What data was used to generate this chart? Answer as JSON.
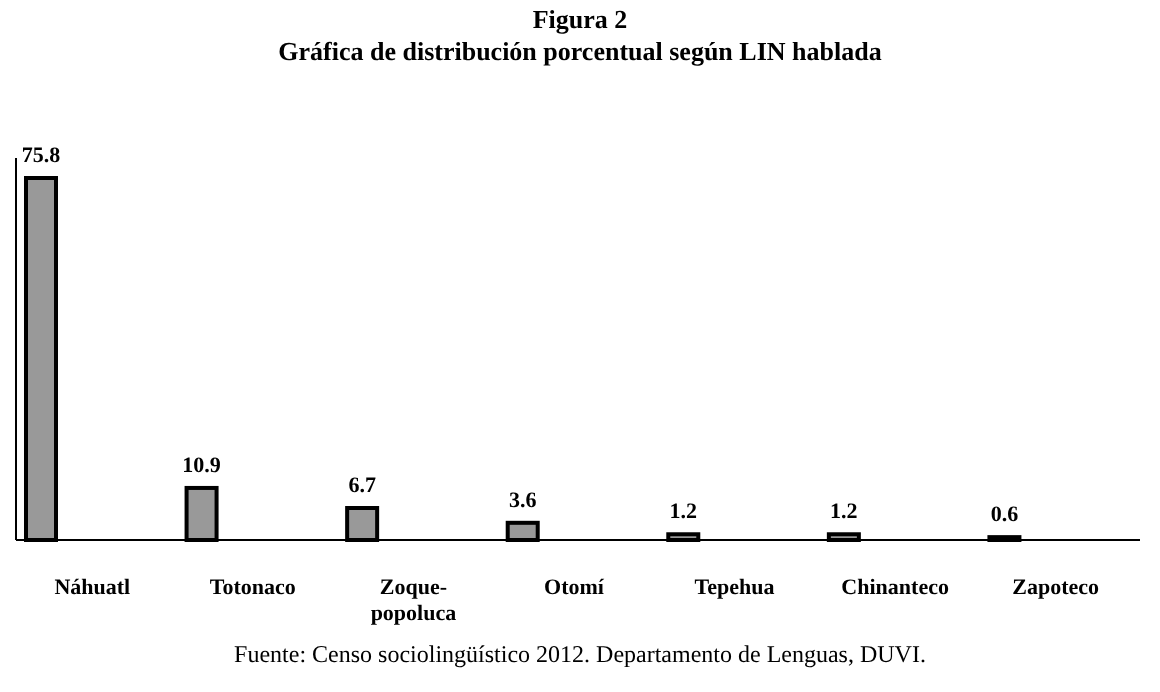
{
  "chart_data": {
    "type": "bar",
    "title": "Figura 2",
    "subtitle": "Gráfica de distribución porcentual según LIN hablada",
    "categories": [
      "Náhuatl",
      "Totonaco",
      "Zoque-popoluca",
      "Otomí",
      "Tepehua",
      "Chinanteco",
      "Zapoteco"
    ],
    "values": [
      75.8,
      10.9,
      6.7,
      3.6,
      1.2,
      1.2,
      0.6
    ],
    "color": "#999999",
    "data_labels": true,
    "annotations": [
      "Fuente: Censo sociolingüístico 2012. Departamento de Lenguas, DUVI."
    ]
  }
}
